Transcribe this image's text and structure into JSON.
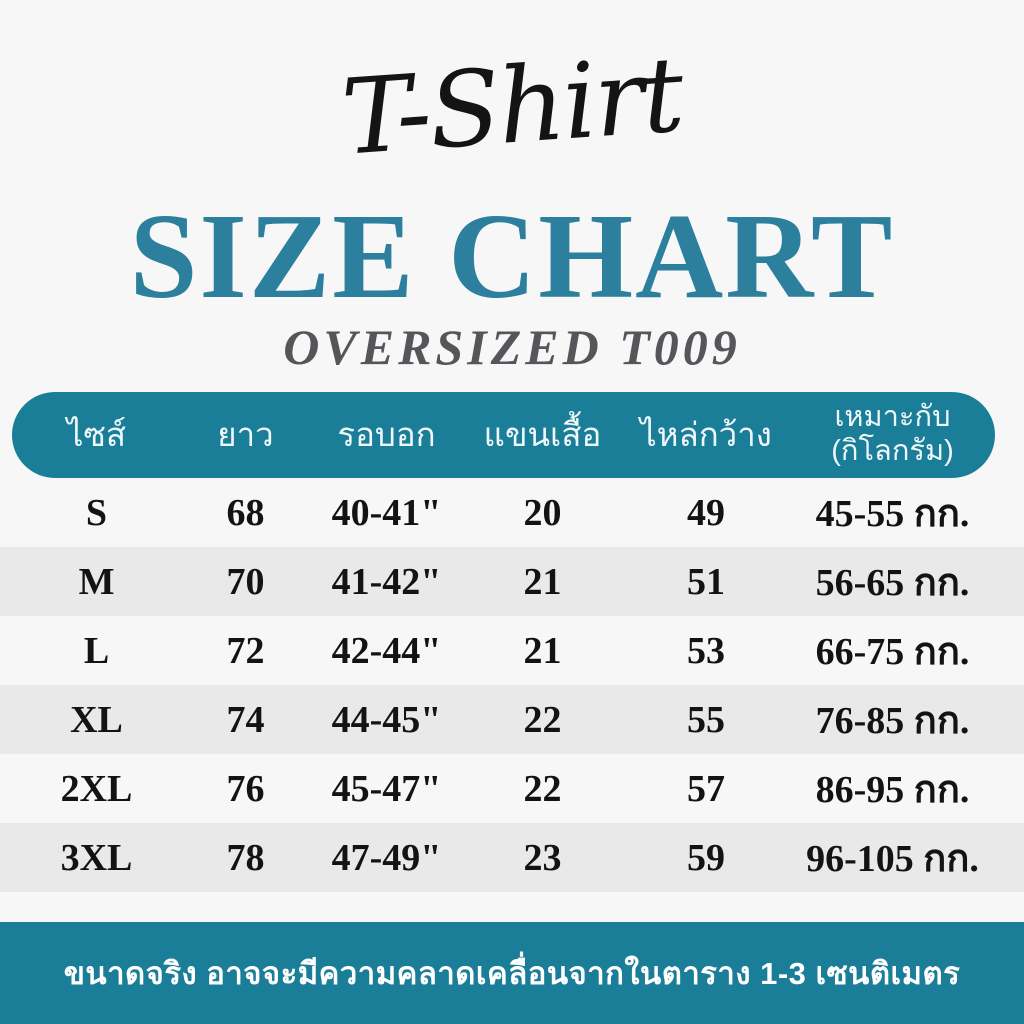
{
  "colors": {
    "background": "#f6f7f6",
    "accent_teal": "#1b7e99",
    "title_teal": "#2c7f9d",
    "subtitle_gray": "#55565a",
    "stripe_gray": "#e8e9e8",
    "text_black": "#131313",
    "header_text_white": "#eef7f9"
  },
  "header": {
    "script_title": "T-Shirt",
    "main_title": "SIZE CHART",
    "subtitle": "OVERSIZED T009"
  },
  "table": {
    "columns": [
      {
        "label": "ไซส์"
      },
      {
        "label": "ยาว"
      },
      {
        "label": "รอบอก"
      },
      {
        "label": "แขนเสื้อ"
      },
      {
        "label": "ไหล่กว้าง"
      },
      {
        "label": "เหมาะกับ",
        "sublabel": "(กิโลกรัม)"
      }
    ],
    "rows": [
      [
        "S",
        "68",
        "40-41\"",
        "20",
        "49",
        "45-55 กก."
      ],
      [
        "M",
        "70",
        "41-42\"",
        "21",
        "51",
        "56-65 กก."
      ],
      [
        "L",
        "72",
        "42-44\"",
        "21",
        "53",
        "66-75 กก."
      ],
      [
        "XL",
        "74",
        "44-45\"",
        "22",
        "55",
        "76-85 กก."
      ],
      [
        "2XL",
        "76",
        "45-47\"",
        "22",
        "57",
        "86-95 กก."
      ],
      [
        "3XL",
        "78",
        "47-49\"",
        "23",
        "59",
        "96-105 กก."
      ]
    ]
  },
  "footer": {
    "note": "ขนาดจริง อาจจะมีความคลาดเคลื่อนจากในตาราง 1-3 เซนติเมตร"
  }
}
